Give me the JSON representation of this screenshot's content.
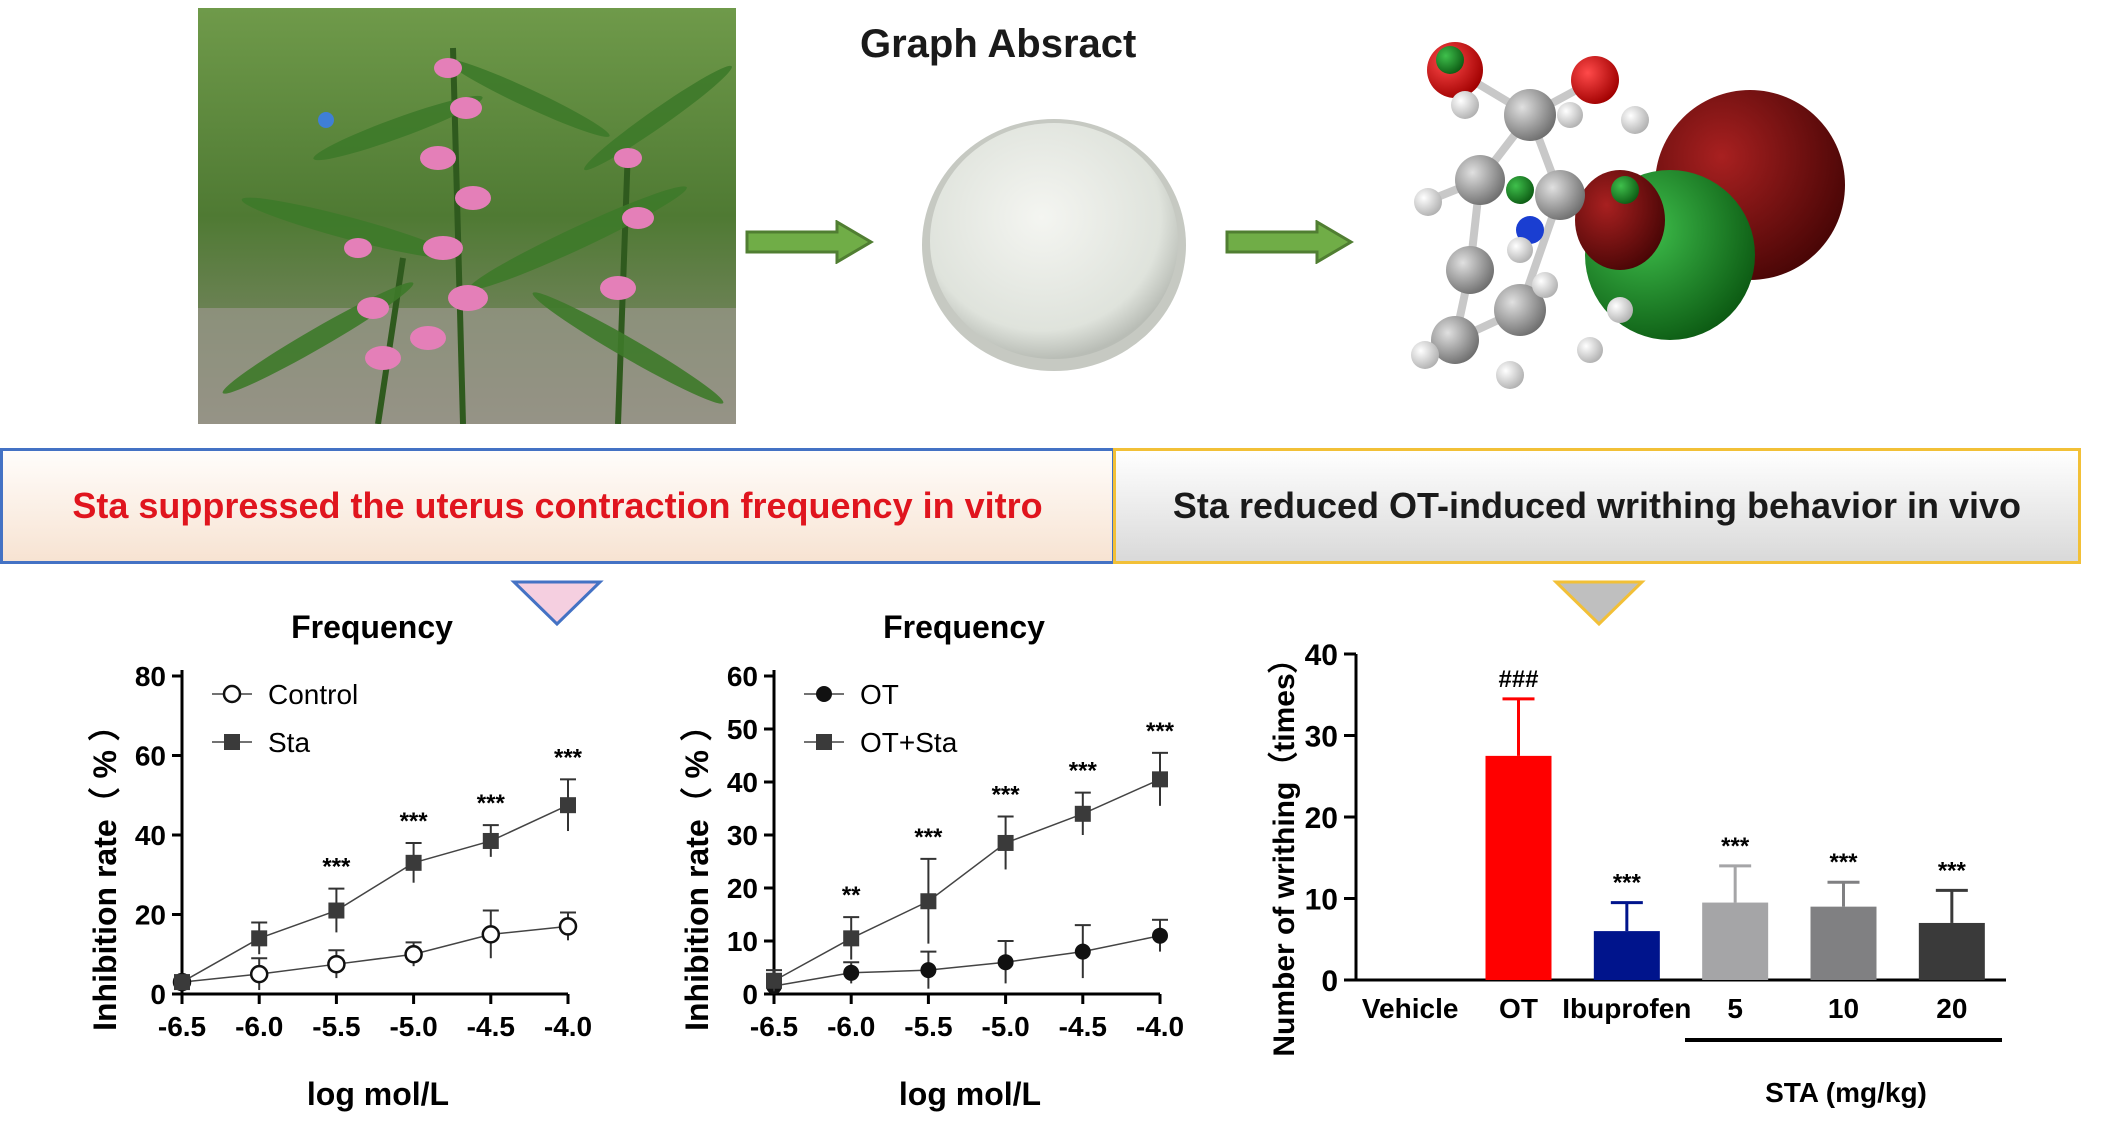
{
  "header": {
    "title": "Graph Absract"
  },
  "banners": {
    "left": "Sta suppressed the uterus contraction frequency in vitro",
    "right": "Sta reduced OT-induced writhing behavior in vivo"
  },
  "colors": {
    "left_banner_text": "#e0151e",
    "left_border": "#4472c4",
    "right_border": "#f2c037",
    "arrow_green": "#70ad47",
    "bar_ot": "#ff0000",
    "bar_ibuprofen": "#00148c"
  },
  "chart_data": [
    {
      "type": "line",
      "title": "Frequency",
      "xlabel": "log mol/L",
      "ylabel": "Inhibition rate（ % ）",
      "xlim": [
        -6.5,
        -4.0
      ],
      "ylim": [
        0,
        80
      ],
      "yticks": [
        0,
        20,
        40,
        60,
        80
      ],
      "xticks": [
        "-6.5",
        "-6.0",
        "-5.5",
        "-5.0",
        "-4.5",
        "-4.0"
      ],
      "x": [
        -6.5,
        -6.0,
        -5.5,
        -5.0,
        -4.5,
        -4.0
      ],
      "series": [
        {
          "name": "Control",
          "marker": "open-circle",
          "values": [
            3,
            5,
            7.5,
            10,
            15,
            17
          ],
          "errors": [
            1.5,
            4,
            3.5,
            3,
            6,
            3.5
          ]
        },
        {
          "name": "Sta",
          "marker": "filled-square",
          "values": [
            3,
            14,
            21,
            33,
            38.5,
            47.5
          ],
          "errors": [
            1.5,
            4,
            5.5,
            5,
            4,
            6.5
          ]
        }
      ],
      "significance": [
        "",
        "",
        "***",
        "***",
        "***",
        "***"
      ],
      "legend": "top-left"
    },
    {
      "type": "line",
      "title": "Frequency",
      "xlabel": "log mol/L",
      "ylabel": "Inhibition rate（ % ）",
      "xlim": [
        -6.5,
        -4.0
      ],
      "ylim": [
        0,
        60
      ],
      "yticks": [
        0,
        10,
        20,
        30,
        40,
        50,
        60
      ],
      "xticks": [
        "-6.5",
        "-6.0",
        "-5.5",
        "-5.0",
        "-4.5",
        "-4.0"
      ],
      "x": [
        -6.5,
        -6.0,
        -5.5,
        -5.0,
        -4.5,
        -4.0
      ],
      "series": [
        {
          "name": "OT",
          "marker": "filled-circle",
          "values": [
            1.5,
            4,
            4.5,
            6,
            8,
            11
          ],
          "errors": [
            1,
            2,
            3.5,
            4,
            5,
            3
          ]
        },
        {
          "name": "OT+Sta",
          "marker": "filled-square",
          "values": [
            2.5,
            10.5,
            17.5,
            28.5,
            34,
            40.5
          ],
          "errors": [
            2,
            4,
            8,
            5,
            4,
            5
          ]
        }
      ],
      "significance": [
        "",
        "**",
        "***",
        "***",
        "***",
        "***"
      ],
      "legend": "top-left"
    },
    {
      "type": "bar",
      "ylabel": "Number of writhing（times）",
      "ylim": [
        0,
        40
      ],
      "yticks": [
        0,
        10,
        20,
        30,
        40
      ],
      "categories": [
        "Vehicle",
        "OT",
        "Ibuprofen",
        "5",
        "10",
        "20"
      ],
      "values": [
        0,
        27.5,
        6,
        9.5,
        9,
        7
      ],
      "errors": [
        0,
        7,
        3.5,
        4.5,
        3,
        4
      ],
      "colors": [
        "#ffffff",
        "#ff0000",
        "#00148c",
        "#a5a5a7",
        "#808082",
        "#3a3a3a"
      ],
      "annotations": [
        "",
        "###",
        "***",
        "***",
        "***",
        "***"
      ],
      "group_label": "STA (mg/kg)"
    }
  ]
}
